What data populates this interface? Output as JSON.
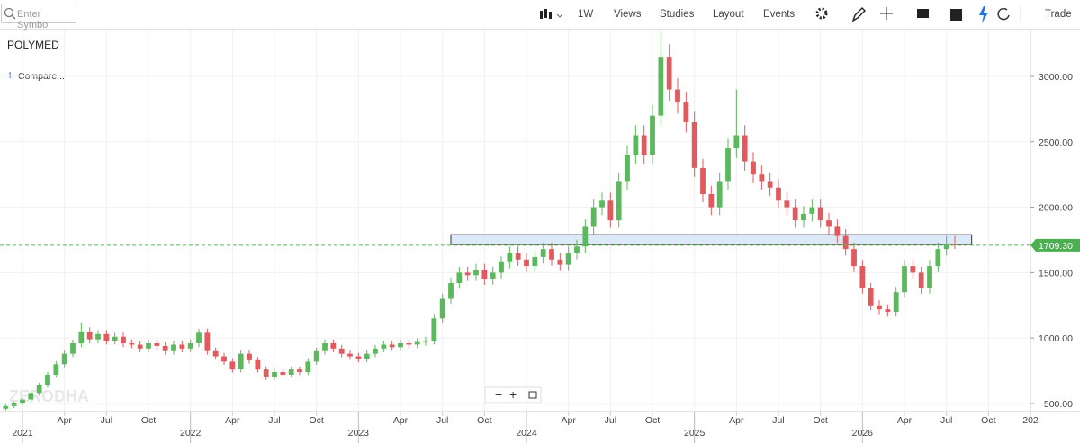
{
  "toolbar": {
    "search_placeholder": "Enter Symbol",
    "interval": "1W",
    "menus": [
      "Views",
      "Studies",
      "Layout",
      "Events"
    ],
    "trade": "Trade"
  },
  "compare": "Compare...",
  "watermark": "ZERODHA",
  "chart_data": {
    "type": "candlestick",
    "title": "POLYMED",
    "up_color": "#5cb85c",
    "down_color": "#e05a5e",
    "grid": true,
    "x": [
      2020.9,
      2020.95,
      2021,
      2021.05,
      2021.1,
      2021.15,
      2021.2,
      2021.25,
      2021.3,
      2021.35,
      2021.4,
      2021.45,
      2021.5,
      2021.55,
      2021.6,
      2021.65,
      2021.7,
      2021.75,
      2021.8,
      2021.85,
      2021.9,
      2021.95,
      2022,
      2022.05,
      2022.1,
      2022.15,
      2022.2,
      2022.25,
      2022.3,
      2022.35,
      2022.4,
      2022.45,
      2022.5,
      2022.55,
      2022.6,
      2022.65,
      2022.7,
      2022.75,
      2022.8,
      2022.85,
      2022.9,
      2022.95,
      2023,
      2023.05,
      2023.1,
      2023.15,
      2023.2,
      2023.25,
      2023.3,
      2023.35,
      2023.4,
      2023.45,
      2023.5,
      2023.55,
      2023.6,
      2023.65,
      2023.7,
      2023.75,
      2023.8,
      2023.85,
      2023.9,
      2023.95,
      2024,
      2024.05,
      2024.1,
      2024.15,
      2024.2,
      2024.25,
      2024.3,
      2024.35,
      2024.4,
      2024.45,
      2024.5,
      2024.55,
      2024.6,
      2024.65,
      2024.7,
      2024.75,
      2024.8,
      2024.85,
      2024.9,
      2024.95,
      2025,
      2025.05,
      2025.1,
      2025.15,
      2025.2,
      2025.25,
      2025.3,
      2025.35,
      2025.4,
      2025.45,
      2025.5,
      2025.55,
      2025.6,
      2025.65,
      2025.7,
      2025.75,
      2025.8,
      2025.85,
      2025.9,
      2025.95,
      2026,
      2026.05,
      2026.1,
      2026.15,
      2026.2,
      2026.25,
      2026.3,
      2026.35,
      2026.4,
      2026.45,
      2026.5,
      2026.55
    ],
    "open": [
      460,
      480,
      500,
      530,
      580,
      640,
      720,
      800,
      880,
      960,
      1050,
      990,
      1030,
      980,
      1010,
      960,
      950,
      920,
      960,
      940,
      900,
      950,
      920,
      960,
      1040,
      900,
      860,
      820,
      760,
      880,
      830,
      760,
      700,
      740,
      720,
      760,
      740,
      820,
      900,
      960,
      920,
      880,
      860,
      840,
      880,
      920,
      950,
      930,
      960,
      950,
      970,
      980,
      1150,
      1300,
      1420,
      1500,
      1480,
      1520,
      1450,
      1500,
      1580,
      1650,
      1600,
      1550,
      1620,
      1680,
      1600,
      1560,
      1650,
      1700,
      1850,
      2000,
      2050,
      1900,
      2200,
      2400,
      2550,
      2400,
      2700,
      3150,
      2900,
      2800,
      2650,
      2300,
      2100,
      2000,
      2200,
      2450,
      2550,
      2350,
      2250,
      2200,
      2150,
      2050,
      2000,
      1900,
      1950,
      2000,
      1900,
      1850,
      1780,
      1680,
      1550,
      1380,
      1250,
      1220,
      1200,
      1350,
      1550,
      1500,
      1380,
      1550,
      1680,
      1720
    ],
    "high": [
      495,
      515,
      546,
      597,
      659,
      742,
      824,
      906,
      989,
      1120,
      1082,
      1061,
      1061,
      1040,
      1040,
      989,
      979,
      989,
      989,
      968,
      979,
      979,
      989,
      1071,
      1071,
      927,
      886,
      845,
      906,
      906,
      855,
      783,
      762,
      762,
      783,
      783,
      845,
      927,
      989,
      989,
      948,
      906,
      886,
      906,
      948,
      979,
      979,
      989,
      989,
      999,
      1009,
      1185,
      1339,
      1463,
      1545,
      1545,
      1566,
      1566,
      1545,
      1627,
      1700,
      1700,
      1648,
      1669,
      1730,
      1730,
      1648,
      1700,
      1751,
      1906,
      2060,
      2112,
      2112,
      2266,
      2472,
      2627,
      2627,
      2781,
      3350,
      3245,
      2987,
      2884,
      2730,
      2369,
      2163,
      2266,
      2524,
      2900,
      2627,
      2421,
      2318,
      2266,
      2215,
      2112,
      2060,
      2009,
      2060,
      2060,
      1957,
      1906,
      1833,
      1730,
      1597,
      1421,
      1288,
      1257,
      1391,
      1597,
      1597,
      1545,
      1597,
      1730,
      1780,
      1780
    ],
    "low": [
      446,
      466,
      485,
      514,
      563,
      621,
      698,
      776,
      854,
      931,
      960,
      960,
      951,
      951,
      931,
      922,
      892,
      892,
      912,
      873,
      873,
      892,
      892,
      931,
      873,
      834,
      795,
      737,
      737,
      805,
      737,
      679,
      679,
      698,
      698,
      718,
      718,
      795,
      873,
      892,
      854,
      834,
      815,
      815,
      854,
      892,
      902,
      902,
      922,
      922,
      941,
      951,
      1116,
      1261,
      1377,
      1436,
      1436,
      1407,
      1407,
      1455,
      1533,
      1552,
      1504,
      1504,
      1571,
      1552,
      1513,
      1513,
      1601,
      1649,
      1795,
      1940,
      1843,
      1843,
      2134,
      2328,
      2328,
      2328,
      2619,
      2813,
      2716,
      2571,
      2231,
      2037,
      1940,
      1940,
      2134,
      2377,
      2280,
      2183,
      2134,
      2086,
      1989,
      1940,
      1843,
      1843,
      1892,
      1843,
      1795,
      1727,
      1630,
      1504,
      1339,
      1213,
      1183,
      1164,
      1164,
      1310,
      1455,
      1339,
      1339,
      1504,
      1630,
      1680
    ],
    "close": [
      480,
      500,
      530,
      580,
      640,
      720,
      800,
      880,
      960,
      1050,
      990,
      1030,
      980,
      1010,
      960,
      950,
      920,
      960,
      940,
      900,
      950,
      920,
      960,
      1040,
      900,
      860,
      820,
      760,
      880,
      830,
      760,
      700,
      740,
      720,
      760,
      740,
      820,
      900,
      960,
      920,
      880,
      860,
      840,
      880,
      920,
      950,
      930,
      960,
      950,
      970,
      980,
      1150,
      1300,
      1420,
      1500,
      1480,
      1520,
      1450,
      1500,
      1580,
      1650,
      1600,
      1550,
      1620,
      1680,
      1600,
      1560,
      1650,
      1700,
      1850,
      2000,
      2050,
      1900,
      2200,
      2400,
      2550,
      2400,
      2700,
      3150,
      2900,
      2800,
      2650,
      2300,
      2100,
      2000,
      2200,
      2450,
      2550,
      2350,
      2250,
      2200,
      2150,
      2050,
      2000,
      1900,
      1950,
      2000,
      1900,
      1850,
      1780,
      1680,
      1550,
      1380,
      1250,
      1220,
      1200,
      1350,
      1550,
      1500,
      1380,
      1550,
      1680,
      1720,
      1709.3
    ],
    "xlim": [
      2020.866,
      2027
    ],
    "xticks": [
      2021,
      {
        "value": 2021.25,
        "label": "Apr"
      },
      {
        "value": 2021.5,
        "label": "Jul"
      },
      {
        "value": 2021.75,
        "label": "Oct"
      },
      2022,
      {
        "value": 2022.25,
        "label": "Apr"
      },
      {
        "value": 2022.5,
        "label": "Jul"
      },
      {
        "value": 2022.75,
        "label": "Oct"
      },
      2023,
      {
        "value": 2023.25,
        "label": "Apr"
      },
      {
        "value": 2023.5,
        "label": "Jul"
      },
      {
        "value": 2023.75,
        "label": "Oct"
      },
      2024,
      {
        "value": 2024.25,
        "label": "Apr"
      },
      {
        "value": 2024.5,
        "label": "Jul"
      },
      {
        "value": 2024.75,
        "label": "Oct"
      },
      2025,
      {
        "value": 2025.25,
        "label": "Apr"
      },
      {
        "value": 2025.5,
        "label": "Jul"
      },
      {
        "value": 2025.75,
        "label": "Oct"
      },
      2026,
      {
        "value": 2026.25,
        "label": "Apr"
      },
      {
        "value": 2026.5,
        "label": "Jul"
      },
      {
        "value": 2026.75,
        "label": "Oct"
      },
      {
        "value": 2027,
        "label": "202"
      }
    ],
    "ylim": [
      438,
      3357
    ],
    "yticks": [
      {
        "value": 500,
        "label": "500.00"
      },
      {
        "value": 1000,
        "label": "1000.00"
      },
      {
        "value": 1500,
        "label": "1500.00"
      },
      {
        "value": 2000,
        "label": "2000.00"
      },
      {
        "value": 2500,
        "label": "2500.00"
      },
      {
        "value": 3000,
        "label": "3000.00"
      }
    ],
    "price_tag": {
      "value": 1709.3,
      "label": "1709.30"
    },
    "zone": {
      "x": [
        2023.55,
        2026.65
      ],
      "y": [
        1715,
        1790
      ]
    }
  }
}
